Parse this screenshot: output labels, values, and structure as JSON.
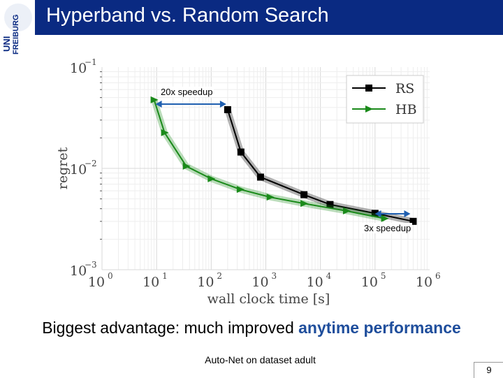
{
  "slide": {
    "title": "Hyperband vs. Random Search",
    "logo_text_1": "UNI",
    "logo_text_2": "FREIBURG",
    "caption_prefix": "Biggest advantage: much improved ",
    "caption_highlight": "anytime performance",
    "subcaption": "Auto-Net on dataset adult",
    "page_number": "9"
  },
  "annotations": {
    "speedup_1": "20x speedup",
    "speedup_2": "3x speedup"
  },
  "colors": {
    "title_bg": "#0a2a82",
    "rs": "#000000",
    "hb": "#1a8a1a",
    "arrow": "#1f5fb0",
    "highlight": "#1f4e9c"
  },
  "chart_data": {
    "type": "line",
    "xlabel": "wall clock time [s]",
    "ylabel": "regret",
    "xscale": "log",
    "yscale": "log",
    "xlim": [
      1,
      1000000
    ],
    "ylim": [
      0.001,
      0.1
    ],
    "x_ticks": [
      "10^0",
      "10^1",
      "10^2",
      "10^3",
      "10^4",
      "10^5",
      "10^6"
    ],
    "y_ticks": [
      "10^-1",
      "10^-2",
      "10^-3"
    ],
    "grid": true,
    "legend_position": "top-right",
    "series": [
      {
        "name": "RS",
        "marker": "square",
        "x": [
          200,
          350,
          800,
          5000,
          15000,
          100000,
          500000
        ],
        "y": [
          0.038,
          0.0145,
          0.0082,
          0.0055,
          0.0044,
          0.0036,
          0.003
        ]
      },
      {
        "name": "HB",
        "marker": "triangle-right",
        "x": [
          9,
          14,
          35,
          100,
          340,
          1200,
          5000,
          30000,
          150000
        ],
        "y": [
          0.0475,
          0.0225,
          0.0105,
          0.0079,
          0.0062,
          0.0052,
          0.0045,
          0.0038,
          0.0032
        ]
      }
    ]
  }
}
